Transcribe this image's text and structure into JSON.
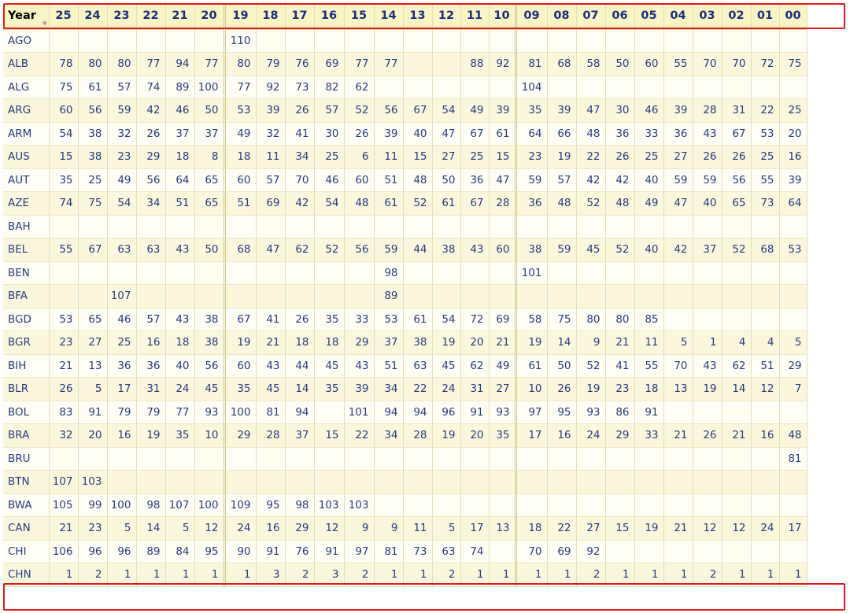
{
  "header": {
    "year_label": "Year",
    "sort_icon": "sort-arrow-icon"
  },
  "columns": [
    "25",
    "24",
    "23",
    "22",
    "21",
    "20",
    "19",
    "18",
    "17",
    "16",
    "15",
    "14",
    "13",
    "12",
    "11",
    "10",
    "09",
    "08",
    "07",
    "06",
    "05",
    "04",
    "03",
    "02",
    "01",
    "00"
  ],
  "rows": [
    {
      "country": "AGO",
      "values": [
        "",
        "",
        "",
        "",
        "",
        "",
        "110",
        "",
        "",
        "",
        "",
        "",
        "",
        "",
        "",
        "",
        "",
        "",
        "",
        "",
        "",
        "",
        "",
        "",
        "",
        ""
      ]
    },
    {
      "country": "ALB",
      "values": [
        "78",
        "80",
        "80",
        "77",
        "94",
        "77",
        "80",
        "79",
        "76",
        "69",
        "77",
        "77",
        "",
        "",
        "88",
        "92",
        "81",
        "68",
        "58",
        "50",
        "60",
        "55",
        "70",
        "70",
        "72",
        "75"
      ]
    },
    {
      "country": "ALG",
      "values": [
        "75",
        "61",
        "57",
        "74",
        "89",
        "100",
        "77",
        "92",
        "73",
        "82",
        "62",
        "",
        "",
        "",
        "",
        "",
        "104",
        "",
        "",
        "",
        "",
        "",
        "",
        "",
        "",
        ""
      ]
    },
    {
      "country": "ARG",
      "values": [
        "60",
        "56",
        "59",
        "42",
        "46",
        "50",
        "53",
        "39",
        "26",
        "57",
        "52",
        "56",
        "67",
        "54",
        "49",
        "39",
        "35",
        "39",
        "47",
        "30",
        "46",
        "39",
        "28",
        "31",
        "22",
        "25"
      ]
    },
    {
      "country": "ARM",
      "values": [
        "54",
        "38",
        "32",
        "26",
        "37",
        "37",
        "49",
        "32",
        "41",
        "30",
        "26",
        "39",
        "40",
        "47",
        "67",
        "61",
        "64",
        "66",
        "48",
        "36",
        "33",
        "36",
        "43",
        "67",
        "53",
        "20"
      ]
    },
    {
      "country": "AUS",
      "values": [
        "15",
        "38",
        "23",
        "29",
        "18",
        "8",
        "18",
        "11",
        "34",
        "25",
        "6",
        "11",
        "15",
        "27",
        "25",
        "15",
        "23",
        "19",
        "22",
        "26",
        "25",
        "27",
        "26",
        "26",
        "25",
        "16"
      ]
    },
    {
      "country": "AUT",
      "values": [
        "35",
        "25",
        "49",
        "56",
        "64",
        "65",
        "60",
        "57",
        "70",
        "46",
        "60",
        "51",
        "48",
        "50",
        "36",
        "47",
        "59",
        "57",
        "42",
        "42",
        "40",
        "59",
        "59",
        "56",
        "55",
        "39"
      ]
    },
    {
      "country": "AZE",
      "values": [
        "74",
        "75",
        "54",
        "34",
        "51",
        "65",
        "51",
        "69",
        "42",
        "54",
        "48",
        "61",
        "52",
        "61",
        "67",
        "28",
        "36",
        "48",
        "52",
        "48",
        "49",
        "47",
        "40",
        "65",
        "73",
        "64"
      ]
    },
    {
      "country": "BAH",
      "values": [
        "",
        "",
        "",
        "",
        "",
        "",
        "",
        "",
        "",
        "",
        "",
        "",
        "",
        "",
        "",
        "",
        "",
        "",
        "",
        "",
        "",
        "",
        "",
        "",
        "",
        ""
      ]
    },
    {
      "country": "BEL",
      "values": [
        "55",
        "67",
        "63",
        "63",
        "43",
        "50",
        "68",
        "47",
        "62",
        "52",
        "56",
        "59",
        "44",
        "38",
        "43",
        "60",
        "38",
        "59",
        "45",
        "52",
        "40",
        "42",
        "37",
        "52",
        "68",
        "53"
      ]
    },
    {
      "country": "BEN",
      "values": [
        "",
        "",
        "",
        "",
        "",
        "",
        "",
        "",
        "",
        "",
        "",
        "98",
        "",
        "",
        "",
        "",
        "101",
        "",
        "",
        "",
        "",
        "",
        "",
        "",
        "",
        ""
      ]
    },
    {
      "country": "BFA",
      "values": [
        "",
        "",
        "107",
        "",
        "",
        "",
        "",
        "",
        "",
        "",
        "",
        "89",
        "",
        "",
        "",
        "",
        "",
        "",
        "",
        "",
        "",
        "",
        "",
        "",
        "",
        ""
      ]
    },
    {
      "country": "BGD",
      "values": [
        "53",
        "65",
        "46",
        "57",
        "43",
        "38",
        "67",
        "41",
        "26",
        "35",
        "33",
        "53",
        "61",
        "54",
        "72",
        "69",
        "58",
        "75",
        "80",
        "80",
        "85",
        "",
        "",
        "",
        "",
        ""
      ]
    },
    {
      "country": "BGR",
      "values": [
        "23",
        "27",
        "25",
        "16",
        "18",
        "38",
        "19",
        "21",
        "18",
        "18",
        "29",
        "37",
        "38",
        "19",
        "20",
        "21",
        "19",
        "14",
        "9",
        "21",
        "11",
        "5",
        "1",
        "4",
        "4",
        "5"
      ]
    },
    {
      "country": "BIH",
      "values": [
        "21",
        "13",
        "36",
        "36",
        "40",
        "56",
        "60",
        "43",
        "44",
        "45",
        "43",
        "51",
        "63",
        "45",
        "62",
        "49",
        "61",
        "50",
        "52",
        "41",
        "55",
        "70",
        "43",
        "62",
        "51",
        "29"
      ]
    },
    {
      "country": "BLR",
      "values": [
        "26",
        "5",
        "17",
        "31",
        "24",
        "45",
        "35",
        "45",
        "14",
        "35",
        "39",
        "34",
        "22",
        "24",
        "31",
        "27",
        "10",
        "26",
        "19",
        "23",
        "18",
        "13",
        "19",
        "14",
        "12",
        "7"
      ]
    },
    {
      "country": "BOL",
      "values": [
        "83",
        "91",
        "79",
        "79",
        "77",
        "93",
        "100",
        "81",
        "94",
        "",
        "101",
        "94",
        "94",
        "96",
        "91",
        "93",
        "97",
        "95",
        "93",
        "86",
        "91",
        "",
        "",
        "",
        "",
        ""
      ]
    },
    {
      "country": "BRA",
      "values": [
        "32",
        "20",
        "16",
        "19",
        "35",
        "10",
        "29",
        "28",
        "37",
        "15",
        "22",
        "34",
        "28",
        "19",
        "20",
        "35",
        "17",
        "16",
        "24",
        "29",
        "33",
        "21",
        "26",
        "21",
        "16",
        "48"
      ]
    },
    {
      "country": "BRU",
      "values": [
        "",
        "",
        "",
        "",
        "",
        "",
        "",
        "",
        "",
        "",
        "",
        "",
        "",
        "",
        "",
        "",
        "",
        "",
        "",
        "",
        "",
        "",
        "",
        "",
        "",
        "81"
      ]
    },
    {
      "country": "BTN",
      "values": [
        "107",
        "103",
        "",
        "",
        "",
        "",
        "",
        "",
        "",
        "",
        "",
        "",
        "",
        "",
        "",
        "",
        "",
        "",
        "",
        "",
        "",
        "",
        "",
        "",
        "",
        ""
      ]
    },
    {
      "country": "BWA",
      "values": [
        "105",
        "99",
        "100",
        "98",
        "107",
        "100",
        "109",
        "95",
        "98",
        "103",
        "103",
        "",
        "",
        "",
        "",
        "",
        "",
        "",
        "",
        "",
        "",
        "",
        "",
        "",
        "",
        ""
      ]
    },
    {
      "country": "CAN",
      "values": [
        "21",
        "23",
        "5",
        "14",
        "5",
        "12",
        "24",
        "16",
        "29",
        "12",
        "9",
        "9",
        "11",
        "5",
        "17",
        "13",
        "18",
        "22",
        "27",
        "15",
        "19",
        "21",
        "12",
        "12",
        "24",
        "17"
      ]
    },
    {
      "country": "CHI",
      "values": [
        "106",
        "96",
        "96",
        "89",
        "84",
        "95",
        "90",
        "91",
        "76",
        "91",
        "97",
        "81",
        "73",
        "63",
        "74",
        "",
        "70",
        "69",
        "92",
        "",
        "",
        "",
        "",
        "",
        "",
        ""
      ]
    },
    {
      "country": "CHN",
      "values": [
        "1",
        "2",
        "1",
        "1",
        "1",
        "1",
        "1",
        "3",
        "2",
        "3",
        "2",
        "1",
        "1",
        "2",
        "1",
        "1",
        "1",
        "1",
        "2",
        "1",
        "1",
        "1",
        "2",
        "1",
        "1",
        "1"
      ]
    }
  ],
  "highlight_color": "#e01b1b"
}
